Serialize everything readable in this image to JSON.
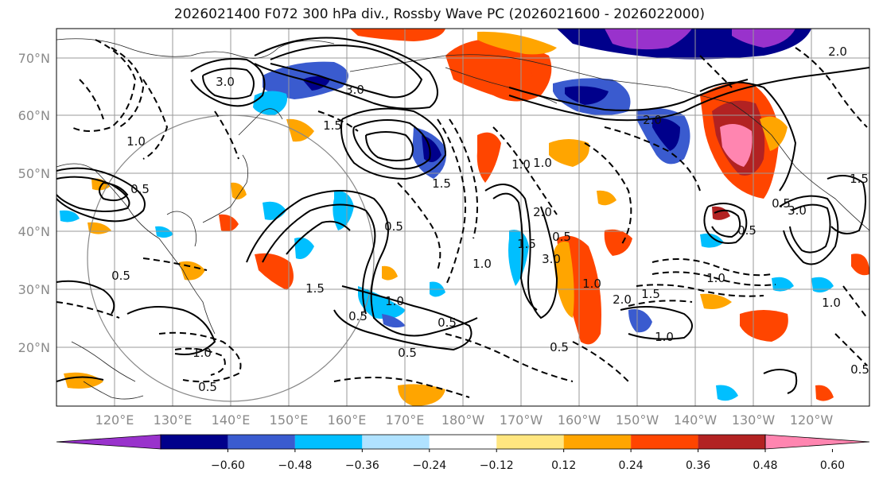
{
  "title": "2026021400 F072 300 hPa div., Rossby Wave PC (2026021600 - 2026022000)",
  "lat_labels": [
    "70°N",
    "60°N",
    "50°N",
    "40°N",
    "30°N",
    "20°N"
  ],
  "lon_labels": [
    "120°E",
    "130°E",
    "140°E",
    "150°E",
    "160°E",
    "170°E",
    "180°W",
    "170°W",
    "160°W",
    "150°W",
    "140°W",
    "130°W",
    "120°W"
  ],
  "colorbar": {
    "colors": [
      "#9932cc",
      "#00008b",
      "#3a5bcf",
      "#00bfff",
      "#b0e2ff",
      "#ffffff",
      "#ffe680",
      "#ffa500",
      "#ff4500",
      "#b22222",
      "#ff85b0"
    ],
    "labels": [
      "−0.60",
      "−0.48",
      "−0.36",
      "−0.24",
      "−0.12",
      "0.12",
      "0.24",
      "0.36",
      "0.48",
      "0.60"
    ]
  },
  "contour_labels": [
    "3.0",
    "3.0",
    "1.5",
    "1.0",
    "0.5",
    "0.5",
    "1.5",
    "1.0",
    "0.5",
    "0.5",
    "0.5",
    "1.0",
    "0.5",
    "1.5",
    "1.0",
    "2.0",
    "1.0",
    "0.5",
    "0.5",
    "1.0",
    "1.5",
    "2.0",
    "3.0",
    "1.0",
    "1.5",
    "1.0",
    "0.5",
    "1.5",
    "2.0",
    "0.5",
    "3.0",
    "1.0",
    "2.0",
    "1.0",
    "0.5",
    "0.5"
  ]
}
